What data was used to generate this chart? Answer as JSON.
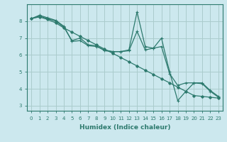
{
  "title": "",
  "xlabel": "Humidex (Indice chaleur)",
  "ylabel": "",
  "background_color": "#cce8ee",
  "grid_color": "#aacccc",
  "line_color": "#2d7a6e",
  "xlim": [
    -0.5,
    23.5
  ],
  "ylim": [
    2.7,
    9.0
  ],
  "yticks": [
    3,
    4,
    5,
    6,
    7,
    8
  ],
  "xticks": [
    0,
    1,
    2,
    3,
    4,
    5,
    6,
    7,
    8,
    9,
    10,
    11,
    12,
    13,
    14,
    15,
    16,
    17,
    18,
    19,
    20,
    21,
    22,
    23
  ],
  "series1_x": [
    0,
    1,
    2,
    3,
    4,
    5,
    6,
    7,
    8,
    9,
    10,
    11,
    12,
    13,
    14,
    15,
    16,
    17,
    18,
    19,
    20,
    21,
    22,
    23
  ],
  "series1_y": [
    8.15,
    8.35,
    8.2,
    8.05,
    7.7,
    6.8,
    6.85,
    6.55,
    6.5,
    6.3,
    6.2,
    6.2,
    6.3,
    8.55,
    6.5,
    6.4,
    7.0,
    5.0,
    3.3,
    3.85,
    4.35,
    4.35,
    3.9,
    3.55
  ],
  "series2_x": [
    0,
    1,
    2,
    3,
    4,
    5,
    6,
    7,
    8,
    9,
    10,
    11,
    12,
    13,
    14,
    15,
    16,
    17,
    18,
    19,
    20,
    21,
    22,
    23
  ],
  "series2_y": [
    8.15,
    8.25,
    8.1,
    7.9,
    7.6,
    7.35,
    7.1,
    6.85,
    6.6,
    6.35,
    6.1,
    5.85,
    5.6,
    5.35,
    5.1,
    4.85,
    4.6,
    4.35,
    4.1,
    3.85,
    3.6,
    3.55,
    3.5,
    3.45
  ],
  "series3_x": [
    0,
    1,
    2,
    3,
    4,
    5,
    6,
    7,
    8,
    9,
    10,
    11,
    12,
    13,
    14,
    15,
    16,
    17,
    18,
    19,
    20,
    21,
    22,
    23
  ],
  "series3_y": [
    8.15,
    8.3,
    8.15,
    8.0,
    7.65,
    6.85,
    7.0,
    6.6,
    6.55,
    6.25,
    6.2,
    6.2,
    6.25,
    7.4,
    6.3,
    6.4,
    6.5,
    4.9,
    4.2,
    4.35,
    4.35,
    4.3,
    3.85,
    3.5
  ]
}
